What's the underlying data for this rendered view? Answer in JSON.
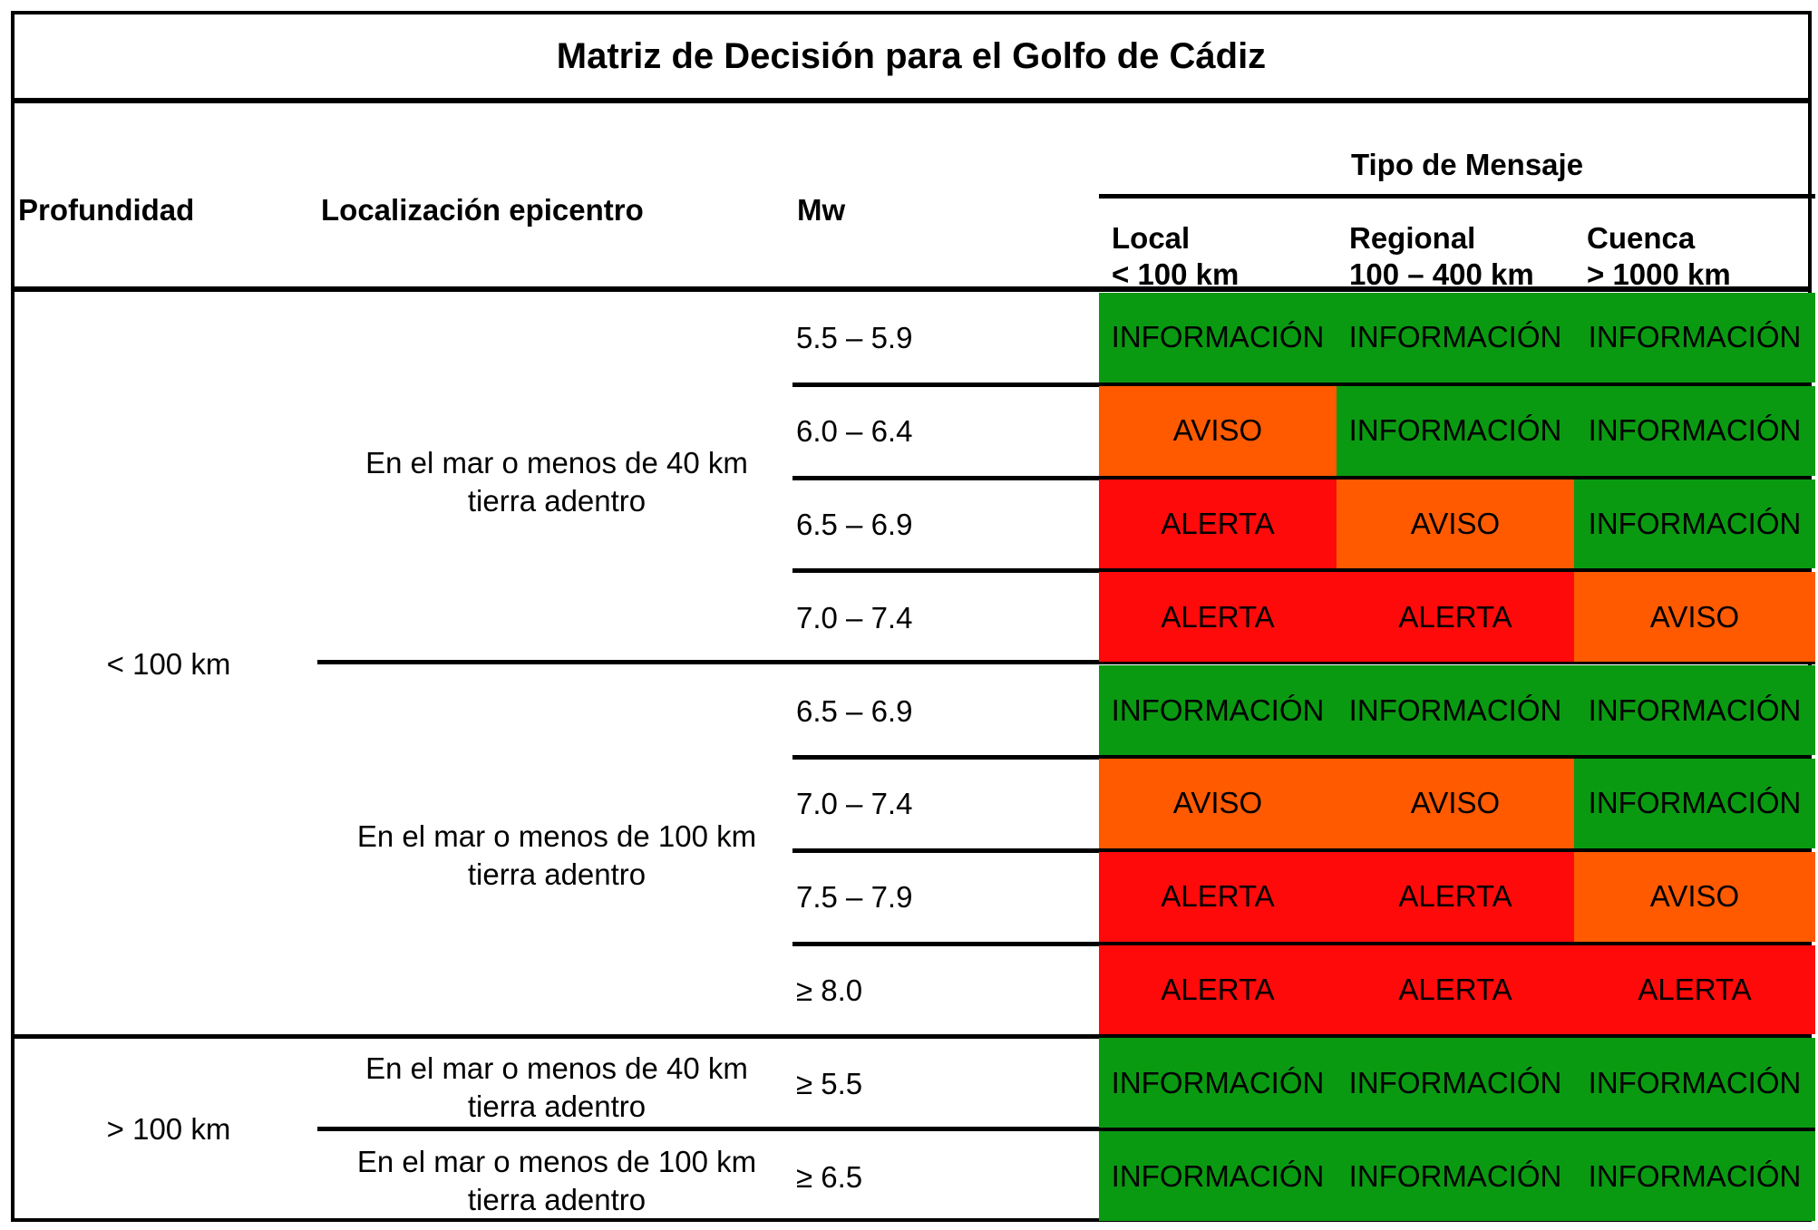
{
  "title": "Matriz de Decisión para el Golfo de Cádiz",
  "headers": {
    "profundidad": "Profundidad",
    "localizacion": "Localización epicentro",
    "mw": "Mw",
    "tipo_mensaje": "Tipo de Mensaje",
    "columns": [
      {
        "line1": "Local",
        "line2": "< 100 km"
      },
      {
        "line1": "Regional",
        "line2": "100 – 400 km"
      },
      {
        "line1": "Cuenca",
        "line2": "> 1000 km"
      }
    ]
  },
  "colors": {
    "INFORMACIÓN": "#0a9a12",
    "AVISO": "#ff5a00",
    "ALERTA": "#ff0a0a"
  },
  "depth_groups": [
    {
      "label": "< 100 km"
    },
    {
      "label": "> 100 km"
    }
  ],
  "location_groups": [
    {
      "line1": "En el mar o menos de 40 km",
      "line2": "tierra adentro"
    },
    {
      "line1": "En el mar o menos de 100 km",
      "line2": "tierra adentro"
    },
    {
      "line1": "En el mar o menos de 40 km",
      "line2": "tierra adentro"
    },
    {
      "line1": "En el mar o menos de 100 km",
      "line2": "tierra adentro"
    }
  ],
  "rows": [
    {
      "mw": "5.5 – 5.9",
      "messages": [
        "INFORMACIÓN",
        "INFORMACIÓN",
        "INFORMACIÓN"
      ]
    },
    {
      "mw": "6.0 – 6.4",
      "messages": [
        "AVISO",
        "INFORMACIÓN",
        "INFORMACIÓN"
      ]
    },
    {
      "mw": "6.5 – 6.9",
      "messages": [
        "ALERTA",
        "AVISO",
        "INFORMACIÓN"
      ]
    },
    {
      "mw": "7.0 – 7.4",
      "messages": [
        "ALERTA",
        "ALERTA",
        "AVISO"
      ]
    },
    {
      "mw": "6.5 – 6.9",
      "messages": [
        "INFORMACIÓN",
        "INFORMACIÓN",
        "INFORMACIÓN"
      ]
    },
    {
      "mw": "7.0 – 7.4",
      "messages": [
        "AVISO",
        "AVISO",
        "INFORMACIÓN"
      ]
    },
    {
      "mw": "7.5 – 7.9",
      "messages": [
        "ALERTA",
        "ALERTA",
        "AVISO"
      ]
    },
    {
      "mw": "≥ 8.0",
      "messages": [
        "ALERTA",
        "ALERTA",
        "ALERTA"
      ]
    },
    {
      "mw": "≥ 5.5",
      "messages": [
        "INFORMACIÓN",
        "INFORMACIÓN",
        "INFORMACIÓN"
      ]
    },
    {
      "mw": "≥ 6.5",
      "messages": [
        "INFORMACIÓN",
        "INFORMACIÓN",
        "INFORMACIÓN"
      ]
    }
  ]
}
